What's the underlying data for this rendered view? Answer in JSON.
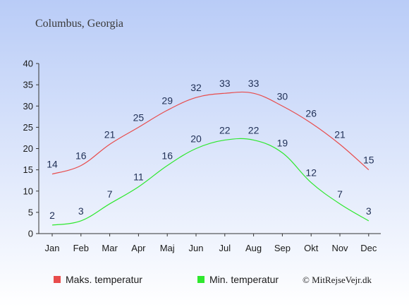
{
  "chart_data": {
    "type": "line",
    "title": "Columbus, Georgia",
    "categories": [
      "Jan",
      "Feb",
      "Mar",
      "Apr",
      "Maj",
      "Jun",
      "Jul",
      "Aug",
      "Sep",
      "Okt",
      "Nov",
      "Dec"
    ],
    "series": [
      {
        "name": "Maks. temperatur",
        "color": "#e84c4c",
        "values": [
          14,
          16,
          21,
          25,
          29,
          32,
          33,
          33,
          30,
          26,
          21,
          15
        ]
      },
      {
        "name": "Min. temperatur",
        "color": "#2ee82e",
        "values": [
          2,
          3,
          7,
          11,
          16,
          20,
          22,
          22,
          19,
          12,
          7,
          3
        ]
      }
    ],
    "ylim": [
      0,
      40
    ],
    "yticks": [
      0,
      5,
      10,
      15,
      20,
      25,
      30,
      35,
      40
    ],
    "xlabel": "",
    "ylabel": "",
    "grid": false,
    "legend": "bottom-left",
    "credit": "© MitRejseVejr.dk",
    "background_top": "#b9ccf7",
    "background_bottom": "#ffffff",
    "label_color": "#1f2f55"
  }
}
